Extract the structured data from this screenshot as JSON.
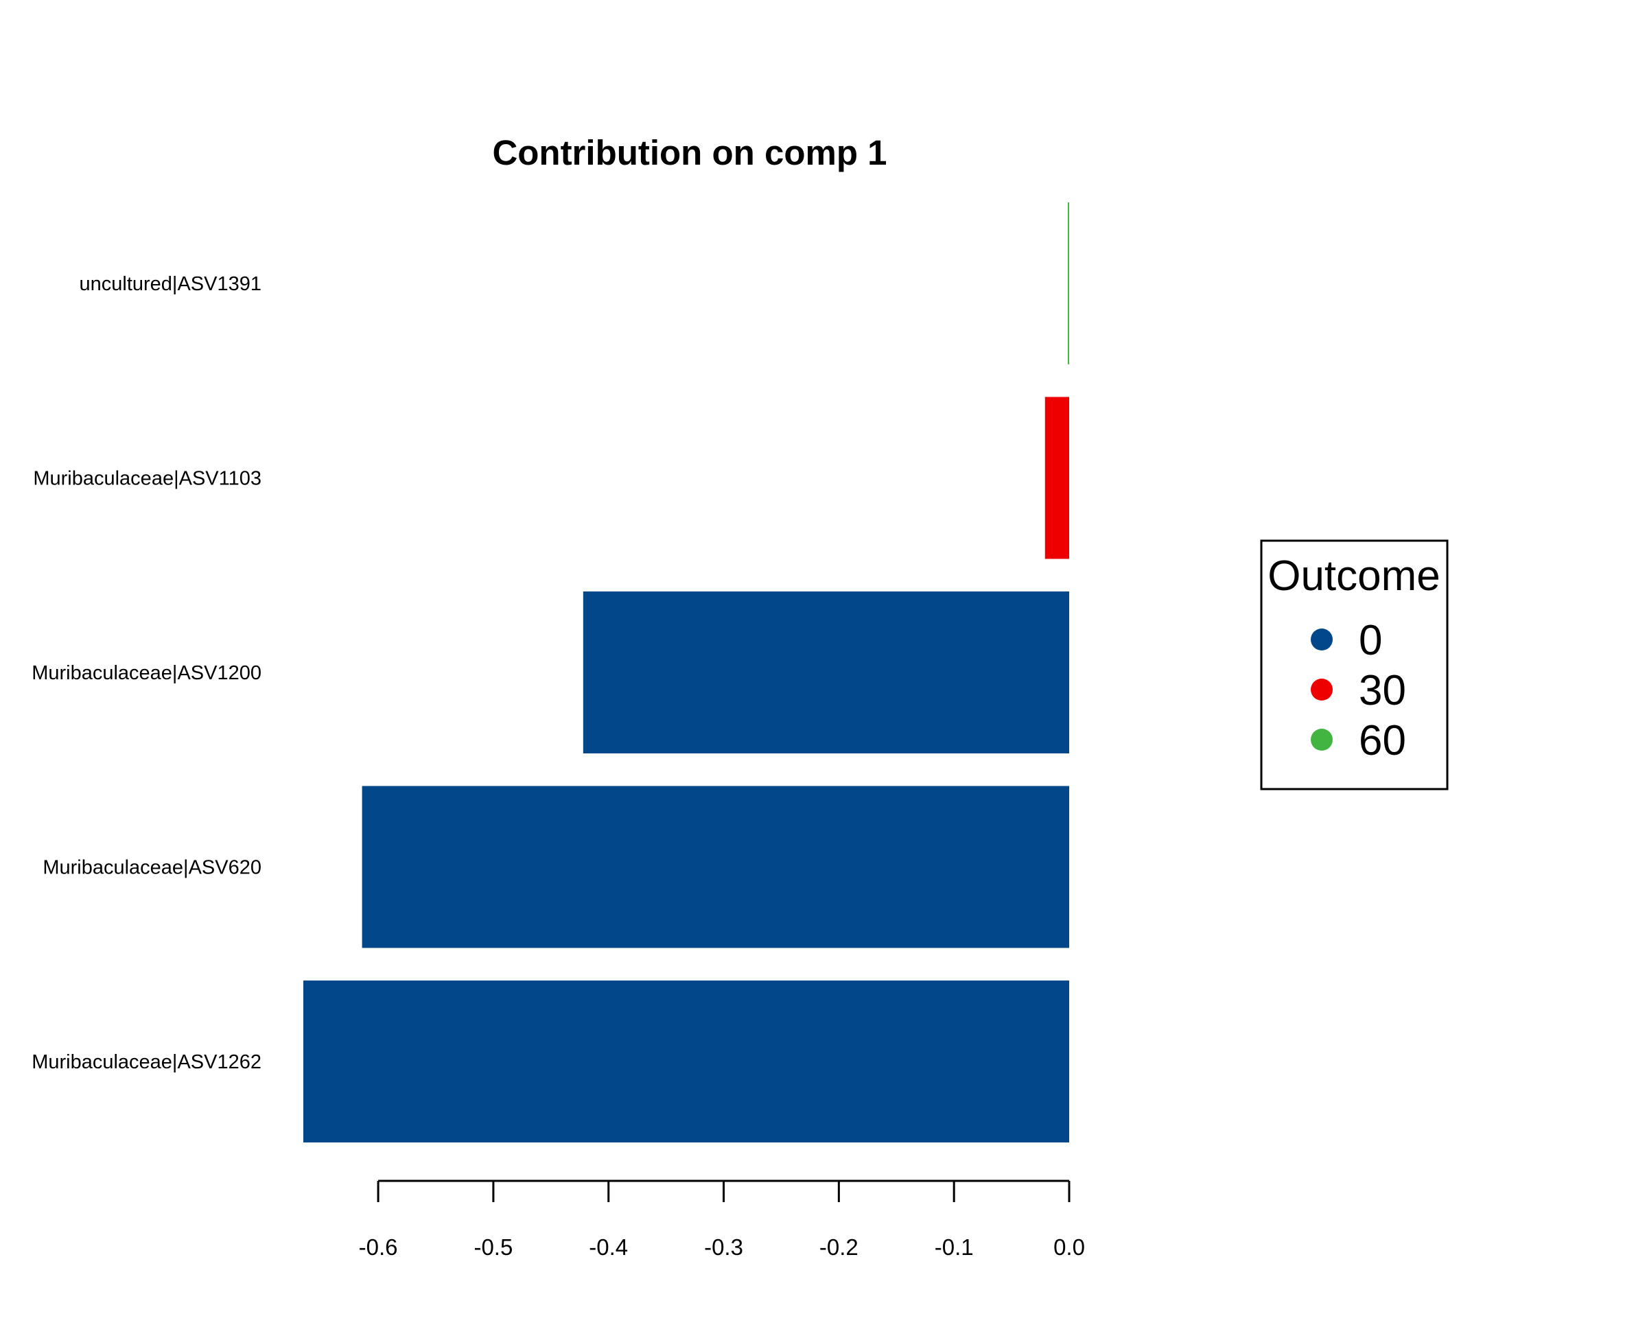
{
  "chart_data": {
    "type": "bar",
    "orientation": "horizontal",
    "title": "Contribution on comp 1",
    "xlabel": "",
    "ylabel": "",
    "categories": [
      "uncultured|ASV1391",
      "Muribaculaceae|ASV1103",
      "Muribaculaceae|ASV1200",
      "Muribaculaceae|ASV620",
      "Muribaculaceae|ASV1262"
    ],
    "values": [
      -0.001,
      -0.021,
      -0.422,
      -0.614,
      -0.665
    ],
    "bar_groups": [
      "60",
      "30",
      "0",
      "0",
      "0"
    ],
    "xlim": [
      -0.665,
      0.0
    ],
    "xticks": [
      -0.6,
      -0.5,
      -0.4,
      -0.3,
      -0.2,
      -0.1,
      0.0
    ],
    "xtick_labels": [
      "-0.6",
      "-0.5",
      "-0.4",
      "-0.3",
      "-0.2",
      "-0.1",
      "0.0"
    ],
    "grid": false,
    "legend": {
      "title": "Outcome",
      "position": "right",
      "entries": [
        {
          "label": "0",
          "color": "#024789"
        },
        {
          "label": "30",
          "color": "#EE0000"
        },
        {
          "label": "60",
          "color": "#42B540"
        }
      ]
    }
  }
}
